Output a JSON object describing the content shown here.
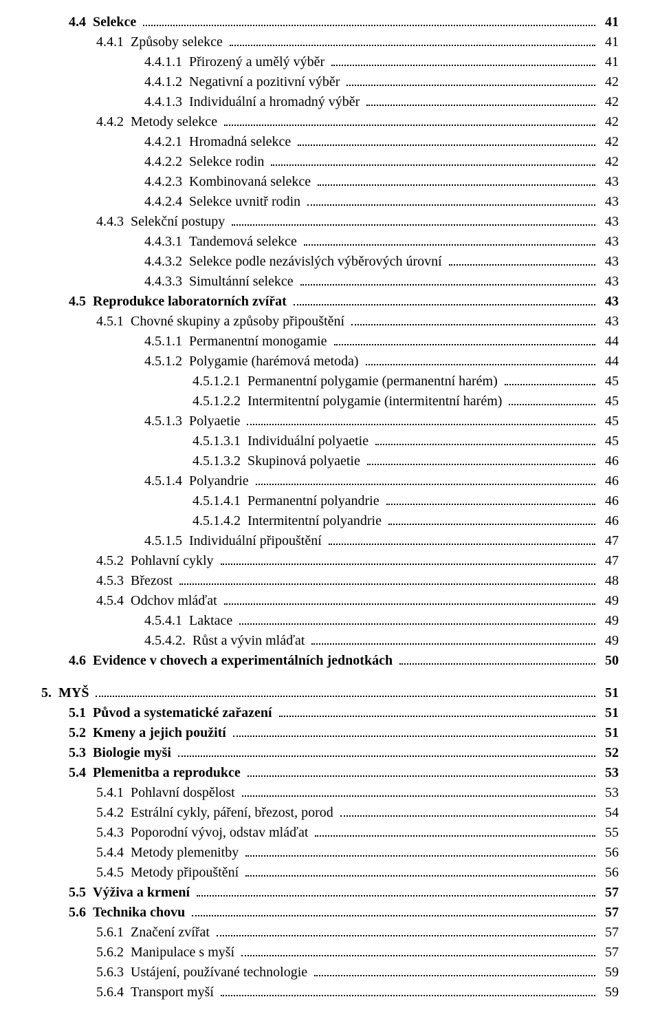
{
  "text_color": "#000000",
  "background_color": "#ffffff",
  "font_family": "Times New Roman",
  "base_font_size_pt": 15,
  "entries": [
    {
      "indent": 1,
      "bold": true,
      "num": "4.4",
      "title": "Selekce",
      "page": "41"
    },
    {
      "indent": 2,
      "bold": false,
      "num": "4.4.1",
      "title": "Způsoby selekce",
      "page": "41"
    },
    {
      "indent": 3,
      "bold": false,
      "num": "4.4.1.1",
      "title": "Přirozený a umělý výběr",
      "page": "41"
    },
    {
      "indent": 3,
      "bold": false,
      "num": "4.4.1.2",
      "title": "Negativní a pozitivní výběr",
      "page": "42"
    },
    {
      "indent": 3,
      "bold": false,
      "num": "4.4.1.3",
      "title": "Individuální a hromadný výběr",
      "page": "42"
    },
    {
      "indent": 2,
      "bold": false,
      "num": "4.4.2",
      "title": "Metody selekce",
      "page": "42"
    },
    {
      "indent": 3,
      "bold": false,
      "num": "4.4.2.1",
      "title": "Hromadná selekce",
      "page": "42"
    },
    {
      "indent": 3,
      "bold": false,
      "num": "4.4.2.2",
      "title": "Selekce rodin",
      "page": "42"
    },
    {
      "indent": 3,
      "bold": false,
      "num": "4.4.2.3",
      "title": "Kombinovaná selekce",
      "page": "43"
    },
    {
      "indent": 3,
      "bold": false,
      "num": "4.4.2.4",
      "title": "Selekce uvnitř rodin",
      "page": "43"
    },
    {
      "indent": 2,
      "bold": false,
      "num": "4.4.3",
      "title": "Selekční postupy",
      "page": "43"
    },
    {
      "indent": 3,
      "bold": false,
      "num": "4.4.3.1",
      "title": "Tandemová selekce",
      "page": "43"
    },
    {
      "indent": 3,
      "bold": false,
      "num": "4.4.3.2",
      "title": "Selekce podle nezávislých výběrových úrovní",
      "page": "43"
    },
    {
      "indent": 3,
      "bold": false,
      "num": "4.4.3.3",
      "title": "Simultánní selekce",
      "page": "43"
    },
    {
      "indent": 1,
      "bold": true,
      "num": "4.5",
      "title": "Reprodukce laboratorních zvířat",
      "page": "43"
    },
    {
      "indent": 2,
      "bold": false,
      "num": "4.5.1",
      "title": "Chovné skupiny a způsoby připouštění",
      "page": "43"
    },
    {
      "indent": 3,
      "bold": false,
      "num": "4.5.1.1",
      "title": "Permanentní monogamie",
      "page": "44"
    },
    {
      "indent": 3,
      "bold": false,
      "num": "4.5.1.2",
      "title": "Polygamie (harémová metoda)",
      "page": "44"
    },
    {
      "indent": 4,
      "bold": false,
      "num": "4.5.1.2.1",
      "title": "Permanentní polygamie (permanentní harém)",
      "page": "45"
    },
    {
      "indent": 4,
      "bold": false,
      "num": "4.5.1.2.2",
      "title": "Intermitentní polygamie (intermitentní harém)",
      "page": "45"
    },
    {
      "indent": 3,
      "bold": false,
      "num": "4.5.1.3",
      "title": "Polyaetie",
      "page": "45"
    },
    {
      "indent": 4,
      "bold": false,
      "num": "4.5.1.3.1",
      "title": "Individuální polyaetie",
      "page": "45"
    },
    {
      "indent": 4,
      "bold": false,
      "num": "4.5.1.3.2",
      "title": "Skupinová polyaetie",
      "page": "46"
    },
    {
      "indent": 3,
      "bold": false,
      "num": "4.5.1.4",
      "title": "Polyandrie",
      "page": "46"
    },
    {
      "indent": 4,
      "bold": false,
      "num": "4.5.1.4.1",
      "title": "Permanentní polyandrie",
      "page": "46"
    },
    {
      "indent": 4,
      "bold": false,
      "num": "4.5.1.4.2",
      "title": "Intermitentní polyandrie",
      "page": "46"
    },
    {
      "indent": 3,
      "bold": false,
      "num": "4.5.1.5",
      "title": "Individuální připouštění",
      "page": "47"
    },
    {
      "indent": 2,
      "bold": false,
      "num": "4.5.2",
      "title": "Pohlavní cykly",
      "page": "47"
    },
    {
      "indent": 2,
      "bold": false,
      "num": "4.5.3",
      "title": "Březost",
      "page": "48"
    },
    {
      "indent": 2,
      "bold": false,
      "num": "4.5.4",
      "title": "Odchov mláďat",
      "page": "49"
    },
    {
      "indent": 3,
      "bold": false,
      "num": "4.5.4.1",
      "title": "Laktace",
      "page": "49"
    },
    {
      "indent": 3,
      "bold": false,
      "num": "4.5.4.2.",
      "title": "Růst a vývin mláďat",
      "page": "49"
    },
    {
      "indent": 1,
      "bold": true,
      "num": "4.6",
      "title": "Evidence v chovech a experimentálních jednotkách",
      "page": "50"
    },
    {
      "gap": true
    },
    {
      "indent": 0,
      "bold": true,
      "num": "5.",
      "title": "MYŠ",
      "page": "51"
    },
    {
      "indent": 1,
      "bold": true,
      "num": "5.1",
      "title": "Původ a systematické zařazení",
      "page": "51"
    },
    {
      "indent": 1,
      "bold": true,
      "num": "5.2",
      "title": "Kmeny a jejich použití",
      "page": "51"
    },
    {
      "indent": 1,
      "bold": true,
      "num": "5.3",
      "title": "Biologie myši",
      "page": "52"
    },
    {
      "indent": 1,
      "bold": true,
      "num": "5.4",
      "title": "Plemenitba a reprodukce",
      "page": "53"
    },
    {
      "indent": 2,
      "bold": false,
      "num": "5.4.1",
      "title": "Pohlavní dospělost",
      "page": "53"
    },
    {
      "indent": 2,
      "bold": false,
      "num": "5.4.2",
      "title": "Estrální cykly, páření, březost, porod",
      "page": "54"
    },
    {
      "indent": 2,
      "bold": false,
      "num": "5.4.3",
      "title": "Poporodní vývoj, odstav mláďat",
      "page": "55"
    },
    {
      "indent": 2,
      "bold": false,
      "num": "5.4.4",
      "title": "Metody plemenitby",
      "page": "56"
    },
    {
      "indent": 2,
      "bold": false,
      "num": "5.4.5",
      "title": "Metody připouštění",
      "page": "56"
    },
    {
      "indent": 1,
      "bold": true,
      "num": "5.5",
      "title": "Výživa a krmení",
      "page": "57"
    },
    {
      "indent": 1,
      "bold": true,
      "num": "5.6",
      "title": "Technika chovu",
      "page": "57"
    },
    {
      "indent": 2,
      "bold": false,
      "num": "5.6.1",
      "title": "Značení zvířat",
      "page": "57"
    },
    {
      "indent": 2,
      "bold": false,
      "num": "5.6.2",
      "title": "Manipulace s myší",
      "page": "57"
    },
    {
      "indent": 2,
      "bold": false,
      "num": "5.6.3",
      "title": "Ustájení, používané technologie",
      "page": "59"
    },
    {
      "indent": 2,
      "bold": false,
      "num": "5.6.4",
      "title": "Transport myší",
      "page": "59"
    }
  ]
}
